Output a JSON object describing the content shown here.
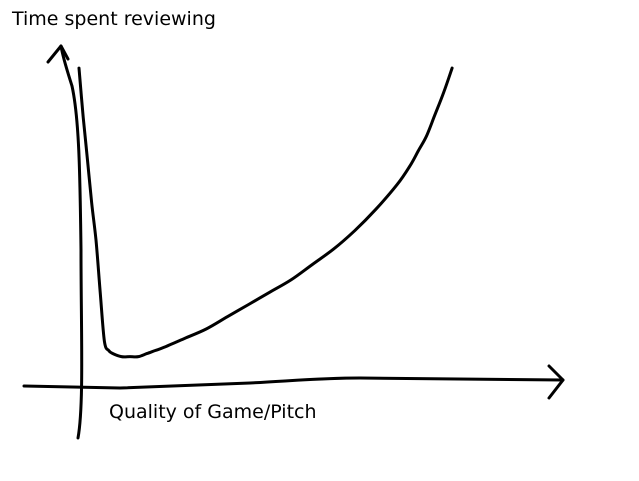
{
  "chart_data": {
    "type": "line",
    "title": "",
    "xlabel": "Quality of Game/Pitch",
    "ylabel": "Time spent reviewing",
    "grid": false,
    "legend": "none",
    "tick_labels": {
      "x": [],
      "y": []
    },
    "hand_drawn": true,
    "line_color": "#000000",
    "xlim": [
      0,
      100
    ],
    "ylim": [
      0,
      100
    ],
    "series": [
      {
        "x": [
          0,
          1,
          2,
          3,
          4,
          5,
          6,
          7,
          8,
          10,
          12,
          14,
          16,
          18,
          20,
          25,
          30,
          35,
          40,
          45,
          50,
          55,
          60,
          65,
          70,
          75,
          78,
          80,
          82,
          84,
          86,
          88
        ],
        "y": [
          99,
          83,
          69,
          55,
          43,
          26,
          10,
          7,
          6,
          5,
          5,
          5,
          6,
          7,
          8,
          11,
          14,
          18,
          22,
          26,
          30,
          35,
          40,
          46,
          53,
          61,
          67,
          72,
          77,
          84,
          91,
          99
        ]
      }
    ]
  }
}
